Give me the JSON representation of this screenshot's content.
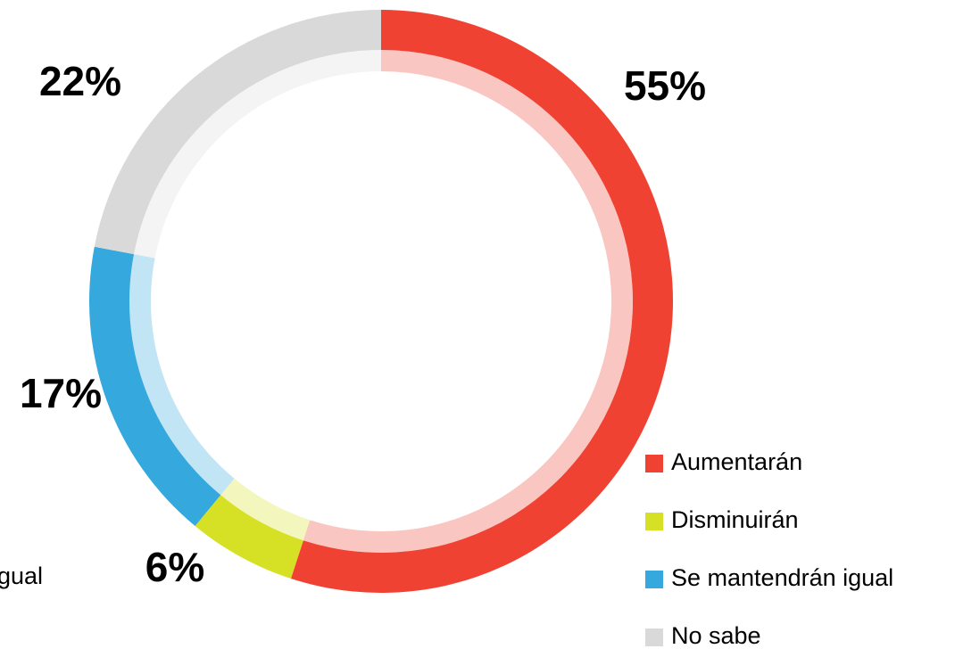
{
  "chart_data": {
    "type": "pie",
    "donut": true,
    "categories": [
      "Aumentarán",
      "Disminuirán",
      "Se mantendrán igual",
      "No sabe"
    ],
    "values": [
      55,
      6,
      17,
      22
    ],
    "value_labels": [
      "55%",
      "6%",
      "17%",
      "22%"
    ],
    "colors": [
      "#f04232",
      "#d6e024",
      "#35a8dd",
      "#d9d9d9"
    ],
    "legend": "bottom-right"
  }
}
